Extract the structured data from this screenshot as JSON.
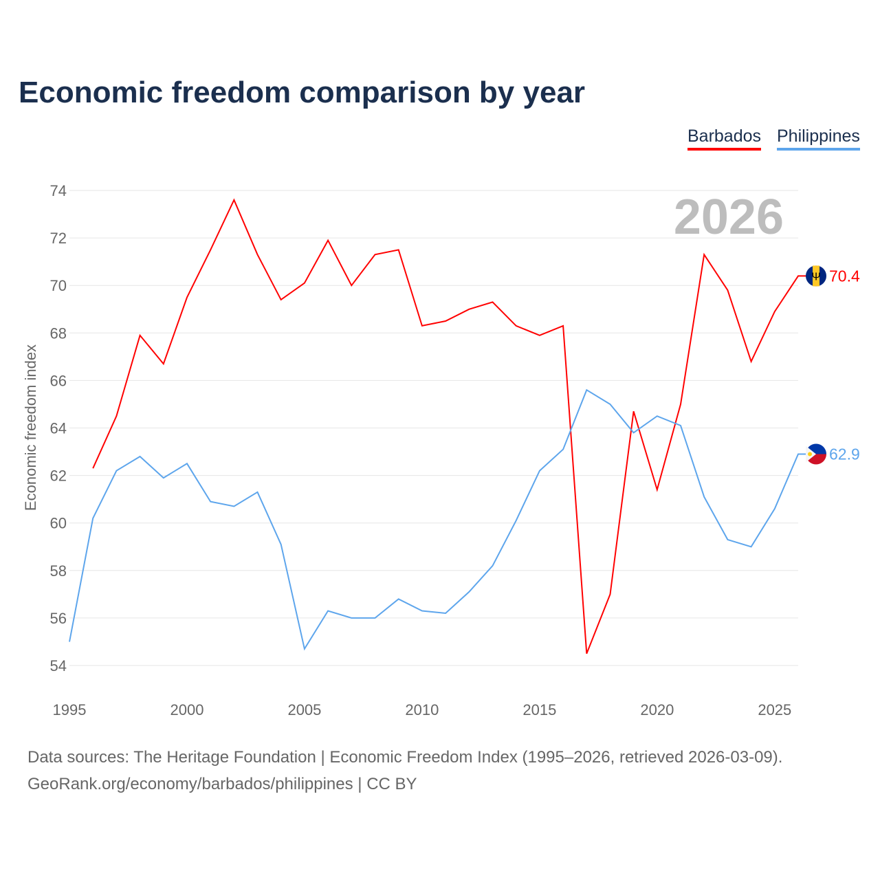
{
  "chart_data": {
    "type": "line",
    "title": "Economic freedom comparison by year",
    "ylabel": "Economic freedom index",
    "xlabel": "",
    "year_watermark": "2026",
    "ylim": [
      54,
      74
    ],
    "xlim": [
      1995,
      2026
    ],
    "yticks": [
      54,
      56,
      58,
      60,
      62,
      64,
      66,
      68,
      70,
      72,
      74
    ],
    "xticks": [
      1995,
      2000,
      2005,
      2010,
      2015,
      2020,
      2025
    ],
    "grid": true,
    "legend_placement": "top-right",
    "series": [
      {
        "name": "Barbados",
        "color": "#ff0000",
        "end_label": "70.4",
        "start_year": 1996,
        "values": [
          62.3,
          64.5,
          67.9,
          66.7,
          69.5,
          71.5,
          73.6,
          71.3,
          69.4,
          70.1,
          71.9,
          70.0,
          71.3,
          71.5,
          68.3,
          68.5,
          69.0,
          69.3,
          68.3,
          67.9,
          68.3,
          54.5,
          57.0,
          64.7,
          61.4,
          65.0,
          71.3,
          69.8,
          66.8,
          68.9,
          70.4
        ]
      },
      {
        "name": "Philippines",
        "color": "#5da5ec",
        "end_label": "62.9",
        "start_year": 1995,
        "values": [
          55.0,
          60.2,
          62.2,
          62.8,
          61.9,
          62.5,
          60.9,
          60.7,
          61.3,
          59.1,
          54.7,
          56.3,
          56.0,
          56.0,
          56.8,
          56.3,
          56.2,
          57.1,
          58.2,
          60.1,
          62.2,
          63.1,
          65.6,
          65.0,
          63.8,
          64.5,
          64.1,
          61.1,
          59.3,
          59.0,
          60.6,
          62.9
        ]
      }
    ]
  },
  "footer": {
    "source": "Data sources: The Heritage Foundation | Economic Freedom Index (1995–2026, retrieved 2026-03-09).",
    "link": "GeoRank.org/economy/barbados/philippines | CC BY"
  }
}
